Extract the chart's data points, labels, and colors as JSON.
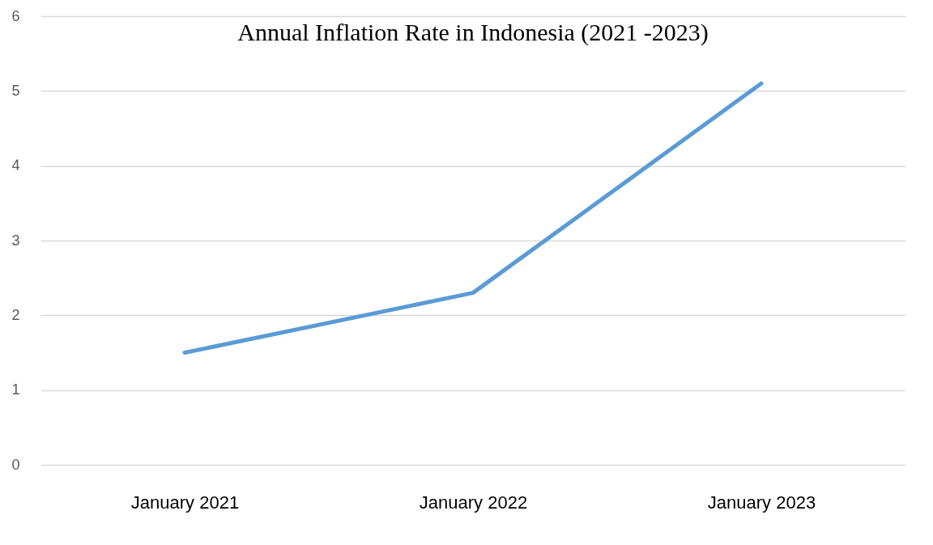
{
  "chart_data": {
    "type": "line",
    "title": "Annual Inflation Rate in Indonesia (2021 -2023)",
    "categories": [
      "January 2021",
      "January 2022",
      "January 2023"
    ],
    "series": [
      {
        "color": "#5b9bd5",
        "values": [
          1.5,
          2.3,
          5.1
        ]
      }
    ],
    "ylim": [
      0,
      6
    ],
    "yticks": [
      0,
      1,
      2,
      3,
      4,
      5,
      6
    ],
    "grid": "y",
    "legend": false,
    "marker": "none",
    "line_style": "solid"
  }
}
